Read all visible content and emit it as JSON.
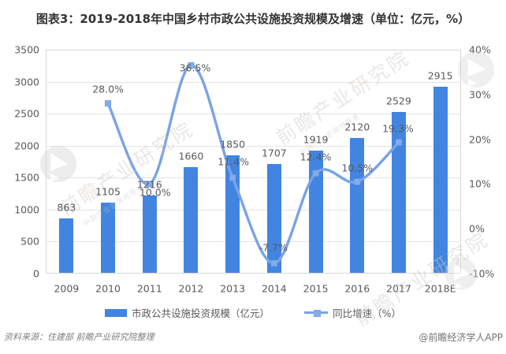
{
  "title": "图表3：2019-2018年中国乡村市政公共设施投资规模及增速（单位：亿元，%）",
  "footer": {
    "source": "资料来源：住建部  前瞻产业研究院整理",
    "brand": "@前瞻经济学人APP"
  },
  "legend": [
    {
      "label": "市政公共设施投资规模（亿元）",
      "type": "bar"
    },
    {
      "label": "同比增速（%）",
      "type": "line"
    }
  ],
  "colors": {
    "bar": "#4285e0",
    "line": "#79a3e8",
    "marker_fill": "#85abea",
    "grid": "#e4e4e4",
    "plot_border": "#d7d7d7",
    "axis_text": "#595959",
    "label_text": "#595959",
    "title_text": "#333333",
    "footer_text": "#7f7f7f"
  },
  "watermark": {
    "diag_text": "前瞻产业研究院",
    "sub_text": "中国产业咨询领导者"
  },
  "chart_data": {
    "type": "bar",
    "subtype": "combo bar + smooth line, dual axis",
    "title": "图表3：2019-2018年中国乡村市政公共设施投资规模及增速（单位：亿元，%）",
    "categories": [
      "2009",
      "2010",
      "2011",
      "2012",
      "2013",
      "2014",
      "2015",
      "2016",
      "2017",
      "2018E"
    ],
    "series": [
      {
        "name": "市政公共设施投资规模（亿元）",
        "type": "bar",
        "axis": "left",
        "values": [
          863,
          1105,
          1216,
          1660,
          1850,
          1707,
          1919,
          2120,
          2529,
          2915
        ],
        "labels": [
          "863",
          "1105",
          "1216",
          "1660",
          "1850",
          "1707",
          "1919",
          "2120",
          "2529",
          "2915"
        ]
      },
      {
        "name": "同比增速（%）",
        "type": "line",
        "axis": "right",
        "categories": [
          "2010",
          "2011",
          "2012",
          "2013",
          "2014",
          "2015",
          "2016",
          "2017"
        ],
        "values": [
          28.0,
          10.0,
          36.5,
          11.4,
          -7.7,
          12.4,
          10.5,
          19.3
        ],
        "labels": [
          "28.0%",
          "10.0%",
          "36.5%",
          "11.4%",
          "-7.7%",
          "12.4%",
          "10.5%",
          "19.3%"
        ]
      }
    ],
    "left_axis": {
      "label": "亿元",
      "min": 0,
      "max": 3500,
      "step": 500,
      "ticks": [
        "3500",
        "3000",
        "2500",
        "2000",
        "1500",
        "1000",
        "500",
        "0"
      ]
    },
    "right_axis": {
      "label": "%",
      "min": -10,
      "max": 40,
      "step": 10,
      "ticks": [
        "40%",
        "30%",
        "20%",
        "10%",
        "0%",
        "-10%"
      ]
    },
    "grid": "horizontal gridlines at each left-axis step",
    "legend_position": "bottom"
  }
}
